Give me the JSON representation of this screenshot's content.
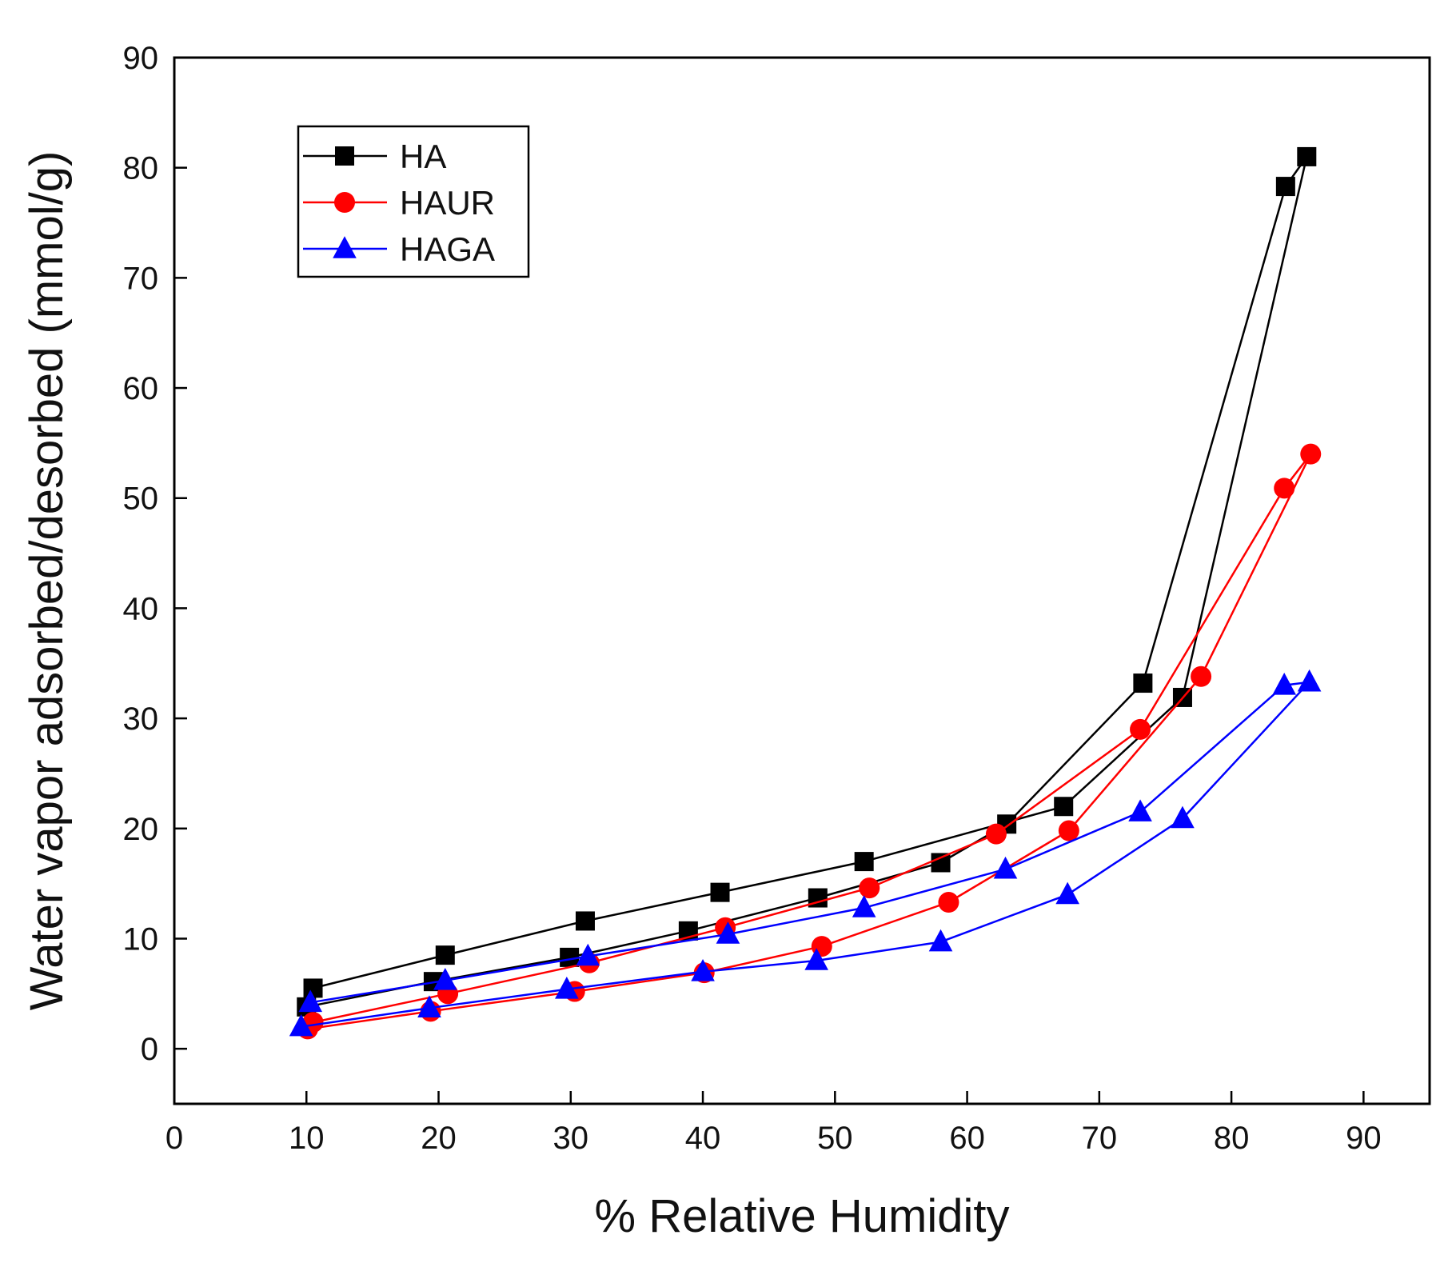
{
  "chart_data": {
    "type": "line",
    "title": "",
    "xlabel": "% Relative Humidity",
    "ylabel": "Water vapor adsorbed/desorbed (mmol/g)",
    "xlim": [
      0,
      95
    ],
    "ylim": [
      -5,
      90
    ],
    "xticks": [
      0,
      10,
      20,
      30,
      40,
      50,
      60,
      70,
      80,
      90
    ],
    "yticks": [
      0,
      10,
      20,
      30,
      40,
      50,
      60,
      70,
      80,
      90
    ],
    "legend_position": "top-left",
    "series": [
      {
        "name": "HA",
        "color": "#000000",
        "marker": "square",
        "x": [
          10,
          19.6,
          29.9,
          38.9,
          48.7,
          58.0,
          63.0,
          73.3,
          84.1,
          85.7,
          76.3,
          67.3,
          52.2,
          41.3,
          31.1,
          20.5,
          10.5
        ],
        "y": [
          3.8,
          6.1,
          8.3,
          10.7,
          13.7,
          16.9,
          20.4,
          33.2,
          78.3,
          81.0,
          31.9,
          22.0,
          17.0,
          14.2,
          11.6,
          8.5,
          5.5
        ]
      },
      {
        "name": "HAUR",
        "color": "#ff0000",
        "marker": "circle",
        "x": [
          10.1,
          19.4,
          30.3,
          40.1,
          49.0,
          58.6,
          67.7,
          77.7,
          86.0,
          84.0,
          73.1,
          62.2,
          52.6,
          41.7,
          31.4,
          20.7,
          10.5
        ],
        "y": [
          1.8,
          3.4,
          5.2,
          6.9,
          9.3,
          13.3,
          19.8,
          33.8,
          54.0,
          50.9,
          29.0,
          19.5,
          14.6,
          11.0,
          7.8,
          5.0,
          2.4
        ]
      },
      {
        "name": "HAGA",
        "color": "#0000ff",
        "marker": "triangle",
        "x": [
          9.6,
          19.3,
          29.7,
          40.0,
          48.6,
          58.0,
          67.6,
          76.3,
          85.9,
          84.0,
          73.1,
          62.9,
          52.2,
          41.9,
          31.3,
          20.5,
          10.3
        ],
        "y": [
          2.0,
          3.7,
          5.4,
          7.0,
          8.0,
          9.7,
          14.0,
          20.9,
          33.3,
          33.0,
          21.5,
          16.3,
          12.8,
          10.4,
          8.4,
          6.2,
          4.2
        ]
      }
    ]
  }
}
